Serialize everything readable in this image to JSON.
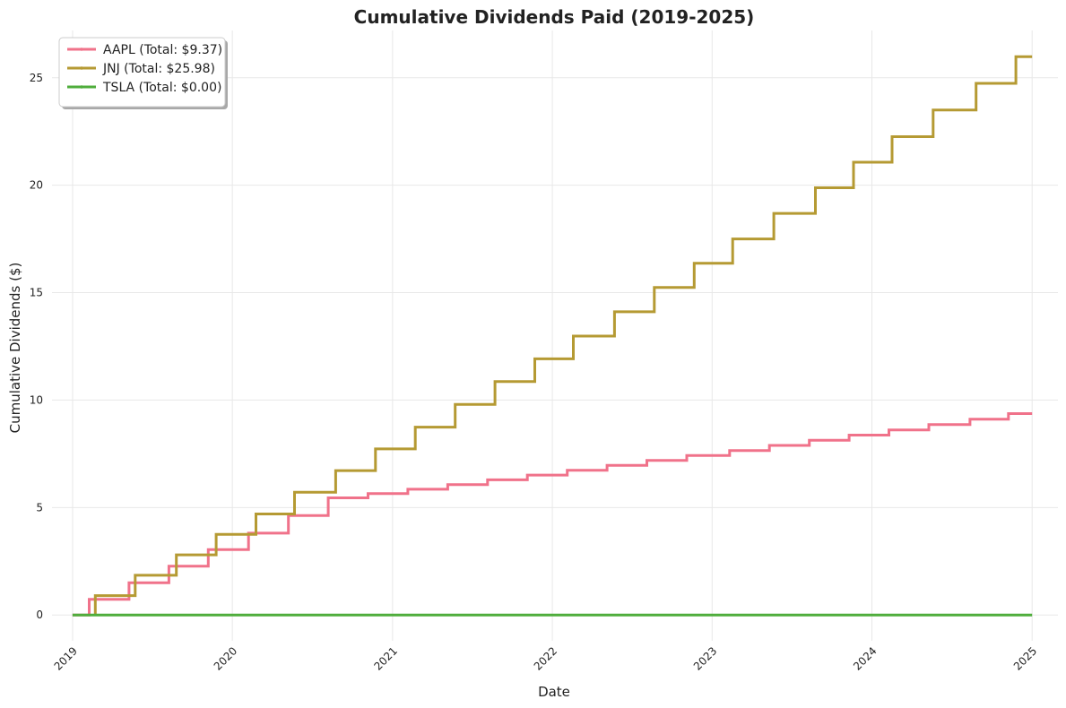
{
  "chart_data": {
    "type": "line",
    "step": true,
    "title": "Cumulative Dividends Paid (2019-2025)",
    "xlabel": "Date",
    "ylabel": "Cumulative Dividends ($)",
    "xlim": [
      "2018-11-15",
      "2025-03-01"
    ],
    "ylim": [
      -1.2,
      27.2
    ],
    "x_ticks": [
      "2019",
      "2020",
      "2021",
      "2022",
      "2023",
      "2024",
      "2025"
    ],
    "y_ticks": [
      0,
      5,
      10,
      15,
      20,
      25
    ],
    "grid": true,
    "legend_position": "top-left",
    "series": [
      {
        "name": "AAPL (Total: $9.37)",
        "color": "#f0728a",
        "points": [
          [
            "2019-01-01",
            0
          ],
          [
            "2019-02-08",
            0
          ],
          [
            "2019-02-08",
            0.73
          ],
          [
            "2019-05-10",
            1.5
          ],
          [
            "2019-08-09",
            2.27
          ],
          [
            "2019-11-07",
            3.04
          ],
          [
            "2020-02-07",
            3.81
          ],
          [
            "2020-05-08",
            4.63
          ],
          [
            "2020-08-07",
            5.45
          ],
          [
            "2020-11-06",
            5.65
          ],
          [
            "2021-02-05",
            5.85
          ],
          [
            "2021-05-07",
            6.07
          ],
          [
            "2021-08-06",
            6.29
          ],
          [
            "2021-11-05",
            6.51
          ],
          [
            "2022-02-04",
            6.73
          ],
          [
            "2022-05-06",
            6.96
          ],
          [
            "2022-08-05",
            7.19
          ],
          [
            "2022-11-04",
            7.42
          ],
          [
            "2023-02-10",
            7.65
          ],
          [
            "2023-05-12",
            7.89
          ],
          [
            "2023-08-11",
            8.13
          ],
          [
            "2023-11-10",
            8.37
          ],
          [
            "2024-02-09",
            8.61
          ],
          [
            "2024-05-10",
            8.86
          ],
          [
            "2024-08-12",
            9.11
          ],
          [
            "2024-11-08",
            9.37
          ],
          [
            "2025-01-01",
            9.37
          ]
        ]
      },
      {
        "name": "JNJ (Total: $25.98)",
        "color": "#b59a33",
        "points": [
          [
            "2019-02-22",
            0
          ],
          [
            "2019-02-22",
            0.9
          ],
          [
            "2019-05-24",
            1.85
          ],
          [
            "2019-08-26",
            2.8
          ],
          [
            "2019-11-25",
            3.75
          ],
          [
            "2020-02-24",
            4.7
          ],
          [
            "2020-05-22",
            5.71
          ],
          [
            "2020-08-24",
            6.72
          ],
          [
            "2020-11-23",
            7.73
          ],
          [
            "2021-02-22",
            8.74
          ],
          [
            "2021-05-24",
            9.8
          ],
          [
            "2021-08-23",
            10.86
          ],
          [
            "2021-11-22",
            11.92
          ],
          [
            "2022-02-18",
            12.98
          ],
          [
            "2022-05-23",
            14.11
          ],
          [
            "2022-08-22",
            15.24
          ],
          [
            "2022-11-21",
            16.37
          ],
          [
            "2023-02-17",
            17.5
          ],
          [
            "2023-05-22",
            18.69
          ],
          [
            "2023-08-25",
            19.88
          ],
          [
            "2023-11-20",
            21.07
          ],
          [
            "2024-02-16",
            22.26
          ],
          [
            "2024-05-20",
            23.5
          ],
          [
            "2024-08-26",
            24.74
          ],
          [
            "2024-11-25",
            25.98
          ],
          [
            "2025-01-01",
            25.98
          ]
        ]
      },
      {
        "name": "TSLA (Total: $0.00)",
        "color": "#4fad3c",
        "points": [
          [
            "2019-01-01",
            0
          ],
          [
            "2025-01-01",
            0
          ]
        ]
      }
    ]
  }
}
